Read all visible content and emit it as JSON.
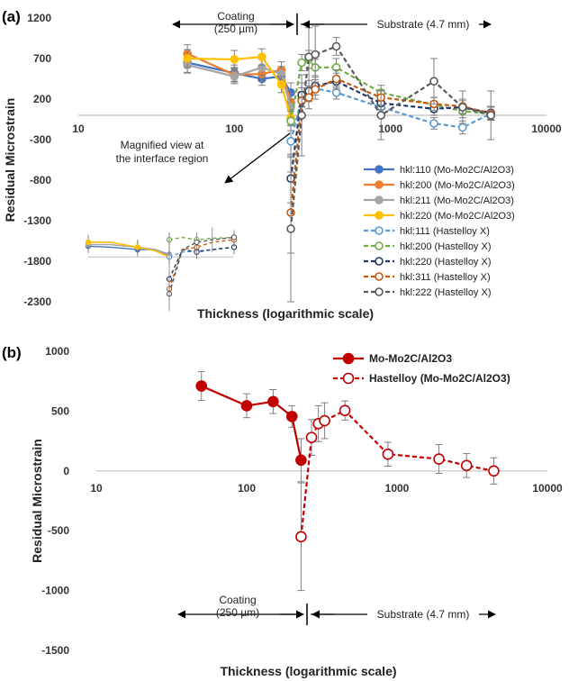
{
  "chart_data": [
    {
      "panel": "(a)",
      "type": "line",
      "xscale": "log",
      "xlim": [
        10,
        10000
      ],
      "ylim": [
        -2300,
        1200
      ],
      "yticks": [
        1200,
        700,
        200,
        -300,
        -800,
        -1300,
        -1800,
        -2300
      ],
      "xticks": [
        "10",
        "100",
        "1000",
        "10000"
      ],
      "xlabel": "Thickness (logarithmic scale)",
      "ylabel": "Residual Microstrain",
      "annotations": {
        "coating": [
          "Coating",
          "(250 µm)"
        ],
        "substrate": "Substrate (4.7 mm)",
        "magnified": [
          "Magnified view at",
          "the interface region"
        ]
      },
      "legend_position": "right",
      "series": [
        {
          "name": "hkl:110 (Mo-Mo2C/Al2O3)",
          "color": "#4472c4",
          "dashed": false,
          "marker": "filled",
          "x": [
            50,
            100,
            150,
            200,
            230
          ],
          "y": [
            650,
            520,
            450,
            480,
            280
          ],
          "err": [
            120,
            100,
            80,
            100,
            120
          ]
        },
        {
          "name": "hkl:200 (Mo-Mo2C/Al2O3)",
          "color": "#ed7d31",
          "dashed": false,
          "marker": "filled",
          "x": [
            50,
            100,
            150,
            200,
            230
          ],
          "y": [
            760,
            500,
            510,
            560,
            160
          ],
          "err": [
            110,
            90,
            90,
            100,
            110
          ]
        },
        {
          "name": "hkl:211 (Mo-Mo2C/Al2O3)",
          "color": "#a5a5a5",
          "dashed": false,
          "marker": "filled",
          "x": [
            50,
            100,
            150,
            200,
            230
          ],
          "y": [
            620,
            480,
            590,
            510,
            100
          ],
          "err": [
            100,
            90,
            100,
            90,
            100
          ]
        },
        {
          "name": "hkl:220 (Mo-Mo2C/Al2O3)",
          "color": "#ffc000",
          "dashed": false,
          "marker": "filled",
          "x": [
            50,
            100,
            150,
            200,
            230
          ],
          "y": [
            700,
            690,
            720,
            380,
            -30
          ],
          "err": [
            110,
            110,
            100,
            100,
            100
          ]
        },
        {
          "name": "hkl:111 (Hastelloy X)",
          "color": "#5b9bd5",
          "dashed": true,
          "marker": "open",
          "x": [
            230,
            270,
            300,
            330,
            450,
            870,
            1900,
            2900,
            4400
          ],
          "y": [
            -320,
            200,
            250,
            330,
            280,
            100,
            -100,
            -150,
            20
          ],
          "err": [
            200,
            90,
            80,
            80,
            80,
            80,
            70,
            80,
            80
          ]
        },
        {
          "name": "hkl:200 (Hastelloy X)",
          "color": "#70ad47",
          "dashed": true,
          "marker": "open",
          "x": [
            230,
            270,
            300,
            330,
            450,
            870,
            1900,
            2900,
            4400
          ],
          "y": [
            -70,
            650,
            690,
            590,
            590,
            280,
            130,
            50,
            20
          ],
          "err": [
            120,
            100,
            110,
            100,
            110,
            90,
            90,
            80,
            80
          ]
        },
        {
          "name": "hkl:220 (Hastelloy X)",
          "color": "#203864",
          "dashed": true,
          "marker": "open",
          "x": [
            230,
            270,
            300,
            330,
            450,
            870,
            1900,
            2900,
            4400
          ],
          "y": [
            -780,
            250,
            300,
            360,
            420,
            150,
            80,
            100,
            30
          ],
          "err": [
            300,
            150,
            130,
            110,
            100,
            80,
            80,
            80,
            80
          ]
        },
        {
          "name": "hkl:311 (Hastelloy X)",
          "color": "#c55a11",
          "dashed": true,
          "marker": "open",
          "x": [
            230,
            270,
            300,
            330,
            450,
            870,
            1900,
            2900,
            4400
          ],
          "y": [
            -1200,
            180,
            220,
            320,
            450,
            220,
            140,
            110,
            20
          ],
          "err": [
            500,
            160,
            140,
            120,
            110,
            90,
            80,
            90,
            80
          ]
        },
        {
          "name": "hkl:222 (Hastelloy X)",
          "color": "#595959",
          "dashed": true,
          "marker": "open",
          "x": [
            230,
            270,
            300,
            330,
            450,
            870,
            1900,
            2900,
            4400
          ],
          "y": [
            -1400,
            0,
            720,
            750,
            850,
            0,
            420,
            100,
            0
          ],
          "err": [
            900,
            500,
            360,
            350,
            110,
            300,
            280,
            200,
            300
          ]
        }
      ]
    },
    {
      "panel": "(b)",
      "type": "line",
      "xscale": "log",
      "xlim": [
        10,
        10000
      ],
      "ylim": [
        -1500,
        1000
      ],
      "yticks": [
        1000,
        500,
        0,
        -500,
        -1000,
        -1500
      ],
      "xticks": [
        "10",
        "100",
        "1000",
        "10000"
      ],
      "xlabel": "Thickness (logarithmic scale)",
      "ylabel": "Residual Microstrain",
      "annotations": {
        "coating": [
          "Coating",
          "(250 µm)"
        ],
        "substrate": "Substrate (4.7 mm)"
      },
      "legend_position": "top-right",
      "series": [
        {
          "name": "Mo-Mo2C/Al2O3",
          "color": "#c00000",
          "dashed": false,
          "marker": "filled",
          "x": [
            50,
            100,
            150,
            200,
            230
          ],
          "y": [
            710,
            545,
            580,
            455,
            90
          ],
          "err": [
            120,
            100,
            100,
            90,
            180
          ]
        },
        {
          "name": "Hastelloy (Mo-Mo2C/Al2O3)",
          "color": "#c00000",
          "dashed": true,
          "marker": "open",
          "x": [
            230,
            270,
            300,
            330,
            450,
            870,
            1900,
            2900,
            4400
          ],
          "y": [
            -550,
            280,
            395,
            420,
            505,
            140,
            100,
            45,
            0
          ],
          "err": [
            450,
            150,
            150,
            150,
            80,
            100,
            120,
            100,
            110
          ]
        }
      ]
    }
  ]
}
